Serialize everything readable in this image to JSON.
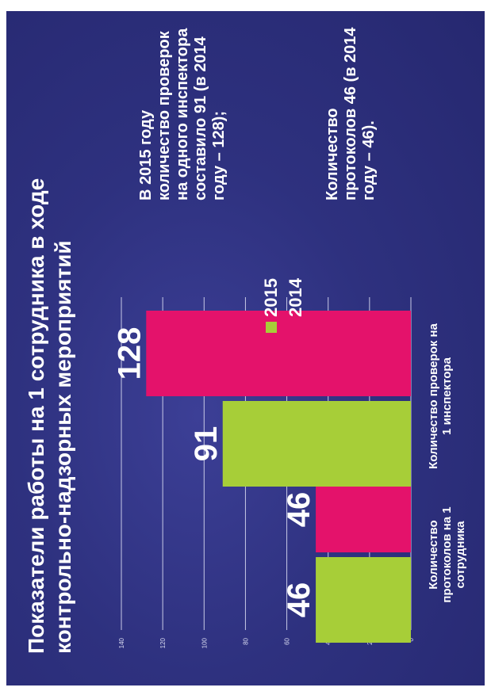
{
  "slide": {
    "title_line1": "Показатели работы на 1 сотрудника в ходе",
    "title_line2": "контрольно-надзорных мероприятий",
    "note1": "В 2015 году количество проверок на одного инспектора составило 91 (в 2014 году – 128);",
    "note2": "Количество протоколов 46 (в 2014 году – 46)."
  },
  "chart_data": {
    "type": "bar",
    "categories": [
      "Количество протоколов на 1 сотрудника",
      "Количество проверок на 1 инспектора"
    ],
    "series": [
      {
        "name": "2015",
        "values": [
          46,
          91
        ],
        "color": "#a7ce38"
      },
      {
        "name": "2014",
        "values": [
          46,
          128
        ],
        "color": "#e4126b"
      }
    ],
    "ylim": [
      0,
      140
    ],
    "yticks": [
      0,
      20,
      40,
      60,
      80,
      100,
      120,
      140
    ],
    "grid": true,
    "legend": "right"
  }
}
